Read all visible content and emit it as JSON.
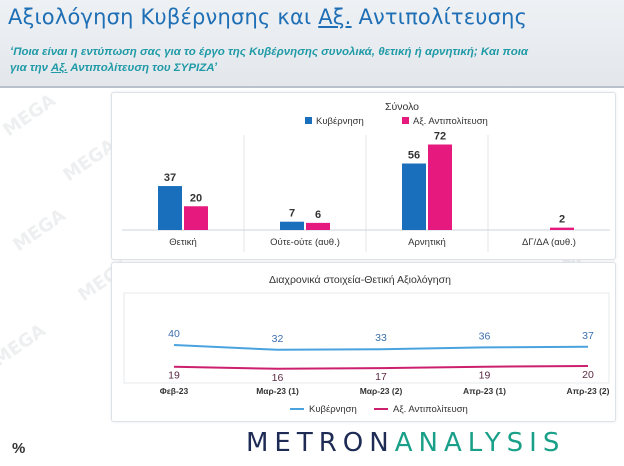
{
  "header": {
    "title_pre": "Αξιολόγηση Κυβέρνησης και ",
    "title_u": "Αξ.",
    "title_post": " Αντιπολίτευσης",
    "subtitle_1": "‘Ποια είναι η εντύπωση σας για το έργο της Κυβέρνησης συνολικά, θετική ή αρνητική; Και ποια",
    "subtitle_2_pre": "για την ",
    "subtitle_2_u": "Αξ.",
    "subtitle_2_post": " Αντιπολίτευση του ΣΥΡΙΖΑ’"
  },
  "watermark": "MEGA",
  "logo": {
    "part1": "METRON",
    "part2": "ANALYSIS"
  },
  "footer_symbol": "%",
  "colors": {
    "government": "#1a6fbd",
    "opposition": "#e6197f",
    "line_gov": "#4aa3df",
    "line_opp": "#cc1f6e"
  },
  "chart_data": [
    {
      "type": "bar",
      "title": "Σύνολο",
      "categories": [
        "Θετική",
        "Ούτε-ούτε (αυθ.)",
        "Αρνητική",
        "ΔΓ/ΔΑ (αυθ.)"
      ],
      "series": [
        {
          "name": "Κυβέρνηση",
          "values": [
            37,
            7,
            56,
            null
          ]
        },
        {
          "name": "Αξ. Αντιπολίτευση",
          "values": [
            20,
            6,
            72,
            2
          ]
        }
      ],
      "ylim": [
        0,
        80
      ],
      "legend": "top"
    },
    {
      "type": "line",
      "title": "Διαχρονικά στοιχεία-Θετική Αξιολόγηση",
      "categories": [
        "Φεβ-23",
        "Μαρ-23 (1)",
        "Μαρ-23 (2)",
        "Απρ-23 (1)",
        "Απρ-23 (2)"
      ],
      "series": [
        {
          "name": "Κυβέρνηση",
          "values": [
            40,
            32,
            33,
            36,
            37
          ]
        },
        {
          "name": "Αξ. Αντιπολίτευση",
          "values": [
            19,
            16,
            17,
            19,
            20
          ]
        }
      ],
      "legend": "bottom"
    }
  ]
}
